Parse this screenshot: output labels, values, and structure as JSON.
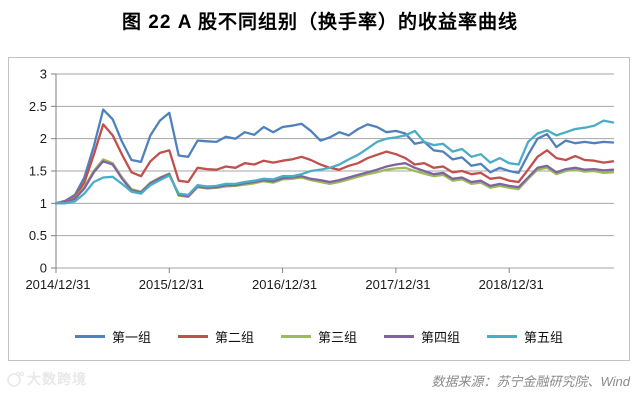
{
  "title": "图 22  A 股不同组别（换手率）的收益率曲线",
  "source_note": "数据来源：苏宁金融研究院、Wind",
  "watermark_text": "大数跨境",
  "frame_color": "#c3c3c3",
  "gridline_color": "#a6a6a6",
  "axis_color": "#808080",
  "label_color": "#1a1a1a",
  "chart_data": {
    "type": "line",
    "title": "图 22  A 股不同组别（换手率）的收益率曲线",
    "xlabel": "",
    "ylabel": "",
    "ylim": [
      0,
      3
    ],
    "y_ticks": [
      {
        "value": 0,
        "label": "0"
      },
      {
        "value": 0.5,
        "label": "0.5"
      },
      {
        "value": 1,
        "label": "1"
      },
      {
        "value": 1.5,
        "label": "1.5"
      },
      {
        "value": 2,
        "label": "2"
      },
      {
        "value": 2.5,
        "label": "2.5"
      },
      {
        "value": 3,
        "label": "3"
      }
    ],
    "x_unit": "monthly points from 2014/12/31 to 2019/11/30",
    "x_ticks": [
      {
        "month_index": 0,
        "label": "2014/12/31"
      },
      {
        "month_index": 12,
        "label": "2015/12/31"
      },
      {
        "month_index": 24,
        "label": "2016/12/31"
      },
      {
        "month_index": 36,
        "label": "2017/12/31"
      },
      {
        "month_index": 48,
        "label": "2018/12/31"
      }
    ],
    "grid": "horizontal",
    "legend_position": "bottom",
    "series": [
      {
        "id": "group1",
        "name": "第一组",
        "color": "#4F81BD",
        "values": [
          1.0,
          1.04,
          1.13,
          1.4,
          1.88,
          2.45,
          2.3,
          1.95,
          1.67,
          1.64,
          2.05,
          2.28,
          2.4,
          1.74,
          1.72,
          1.97,
          1.96,
          1.95,
          2.03,
          2.0,
          2.1,
          2.06,
          2.18,
          2.1,
          2.18,
          2.2,
          2.23,
          2.12,
          1.97,
          2.02,
          2.1,
          2.05,
          2.15,
          2.22,
          2.18,
          2.1,
          2.12,
          2.08,
          1.92,
          1.95,
          1.82,
          1.8,
          1.68,
          1.71,
          1.58,
          1.61,
          1.48,
          1.55,
          1.5,
          1.47,
          1.75,
          2.0,
          2.07,
          1.87,
          1.97,
          1.93,
          1.95,
          1.93,
          1.95,
          1.94
        ]
      },
      {
        "id": "group2",
        "name": "第二组",
        "color": "#C0504D",
        "values": [
          1.0,
          1.03,
          1.1,
          1.32,
          1.75,
          2.22,
          2.05,
          1.75,
          1.48,
          1.42,
          1.65,
          1.78,
          1.82,
          1.35,
          1.33,
          1.55,
          1.53,
          1.52,
          1.57,
          1.55,
          1.62,
          1.6,
          1.66,
          1.63,
          1.66,
          1.68,
          1.72,
          1.67,
          1.6,
          1.55,
          1.52,
          1.58,
          1.62,
          1.7,
          1.75,
          1.8,
          1.76,
          1.7,
          1.6,
          1.62,
          1.55,
          1.57,
          1.48,
          1.5,
          1.45,
          1.47,
          1.38,
          1.4,
          1.35,
          1.33,
          1.52,
          1.72,
          1.82,
          1.7,
          1.67,
          1.73,
          1.67,
          1.66,
          1.63,
          1.65
        ]
      },
      {
        "id": "group3",
        "name": "第三组",
        "color": "#9BBB59",
        "values": [
          1.0,
          1.02,
          1.08,
          1.25,
          1.5,
          1.68,
          1.62,
          1.4,
          1.22,
          1.18,
          1.32,
          1.4,
          1.46,
          1.12,
          1.1,
          1.25,
          1.23,
          1.24,
          1.26,
          1.27,
          1.29,
          1.31,
          1.34,
          1.32,
          1.37,
          1.38,
          1.4,
          1.36,
          1.33,
          1.3,
          1.33,
          1.37,
          1.41,
          1.45,
          1.48,
          1.52,
          1.54,
          1.55,
          1.5,
          1.46,
          1.42,
          1.44,
          1.35,
          1.37,
          1.3,
          1.32,
          1.24,
          1.27,
          1.24,
          1.22,
          1.38,
          1.52,
          1.55,
          1.45,
          1.5,
          1.52,
          1.49,
          1.5,
          1.47,
          1.48
        ]
      },
      {
        "id": "group4",
        "name": "第四组",
        "color": "#8064A2",
        "values": [
          1.0,
          1.02,
          1.07,
          1.23,
          1.48,
          1.65,
          1.6,
          1.38,
          1.2,
          1.17,
          1.31,
          1.39,
          1.45,
          1.13,
          1.11,
          1.26,
          1.24,
          1.25,
          1.28,
          1.28,
          1.31,
          1.33,
          1.36,
          1.34,
          1.39,
          1.4,
          1.42,
          1.38,
          1.36,
          1.33,
          1.36,
          1.4,
          1.44,
          1.48,
          1.52,
          1.57,
          1.6,
          1.62,
          1.55,
          1.5,
          1.45,
          1.47,
          1.38,
          1.4,
          1.33,
          1.35,
          1.27,
          1.3,
          1.27,
          1.25,
          1.4,
          1.55,
          1.58,
          1.48,
          1.53,
          1.55,
          1.52,
          1.53,
          1.51,
          1.52
        ]
      },
      {
        "id": "group5",
        "name": "第五组",
        "color": "#4BACC6",
        "values": [
          1.0,
          1.0,
          1.03,
          1.15,
          1.33,
          1.4,
          1.41,
          1.3,
          1.18,
          1.15,
          1.28,
          1.36,
          1.43,
          1.15,
          1.13,
          1.28,
          1.26,
          1.27,
          1.3,
          1.3,
          1.33,
          1.35,
          1.38,
          1.37,
          1.42,
          1.42,
          1.45,
          1.5,
          1.52,
          1.55,
          1.6,
          1.68,
          1.75,
          1.85,
          1.95,
          2.0,
          2.02,
          2.05,
          2.12,
          1.95,
          1.9,
          1.92,
          1.8,
          1.84,
          1.72,
          1.76,
          1.63,
          1.7,
          1.62,
          1.6,
          1.95,
          2.08,
          2.13,
          2.05,
          2.1,
          2.15,
          2.17,
          2.2,
          2.28,
          2.25
        ]
      }
    ]
  }
}
